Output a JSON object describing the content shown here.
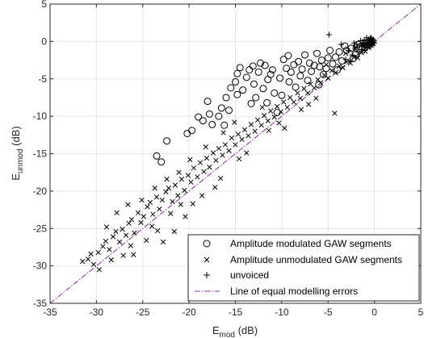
{
  "chart_data": {
    "type": "scatter",
    "xlabel": "E",
    "xlabel_sub": "mod",
    "xlabel_unit": " (dB)",
    "ylabel": "E",
    "ylabel_sub": "unmod",
    "ylabel_unit": " (dB)",
    "xlim": [
      -35,
      5
    ],
    "ylim": [
      -35,
      5
    ],
    "xticks": [
      -35,
      -30,
      -25,
      -20,
      -15,
      -10,
      -5,
      0,
      5
    ],
    "yticks": [
      -35,
      -30,
      -25,
      -20,
      -15,
      -10,
      -5,
      0,
      5
    ],
    "xtick_labels": [
      "-35",
      "-30",
      "-25",
      "-20",
      "-15",
      "-10",
      "-5",
      "0",
      "5"
    ],
    "ytick_labels": [
      "-35",
      "-30",
      "-25",
      "-20",
      "-15",
      "-10",
      "-5",
      "0",
      "5"
    ],
    "grid": true,
    "legend_position": "bottom-right",
    "series": [
      {
        "name": "Amplitude modulated GAW segments",
        "marker": "circle",
        "color": "#000000",
        "points": [
          [
            -23.5,
            -15.3
          ],
          [
            -22.4,
            -13.3
          ],
          [
            -23,
            -16.1
          ],
          [
            -20.2,
            -12.3
          ],
          [
            -19.7,
            -11.9
          ],
          [
            -19,
            -10.1
          ],
          [
            -18.5,
            -10.6
          ],
          [
            -18,
            -8
          ],
          [
            -17.8,
            -9.7
          ],
          [
            -17.5,
            -11.1
          ],
          [
            -16.8,
            -10
          ],
          [
            -16.5,
            -8.9
          ],
          [
            -16,
            -7.5
          ],
          [
            -15.5,
            -6.2
          ],
          [
            -15.7,
            -9.2
          ],
          [
            -15,
            -5.4
          ],
          [
            -14.8,
            -4.3
          ],
          [
            -14.5,
            -3.5
          ],
          [
            -14.8,
            -7.1
          ],
          [
            -14.2,
            -6.5
          ],
          [
            -13.8,
            -4.8
          ],
          [
            -13.5,
            -3.8
          ],
          [
            -13.3,
            -8.3
          ],
          [
            -13,
            -5.7
          ],
          [
            -12.8,
            -7.5
          ],
          [
            -12.5,
            -4.1
          ],
          [
            -12,
            -6.3
          ],
          [
            -11.8,
            -3.2
          ],
          [
            -11.5,
            -5.1
          ],
          [
            -11.2,
            -4.4
          ],
          [
            -11,
            -3.8
          ],
          [
            -10.8,
            -6.9
          ],
          [
            -10.5,
            -9.5
          ],
          [
            -10.2,
            -4.9
          ],
          [
            -10,
            -7.2
          ],
          [
            -9.8,
            -2.4
          ],
          [
            -9.5,
            -3.6
          ],
          [
            -9.2,
            -5.4
          ],
          [
            -9,
            -4.1
          ],
          [
            -8.7,
            -3.1
          ],
          [
            -8.5,
            -6.1
          ],
          [
            -8.2,
            -2.7
          ],
          [
            -8,
            -4.6
          ],
          [
            -7.8,
            -3.7
          ],
          [
            -7.5,
            -1.8
          ],
          [
            -7.2,
            -5.2
          ],
          [
            -7,
            -2.9
          ],
          [
            -6.8,
            -4
          ],
          [
            -6.5,
            -3.2
          ],
          [
            -6.2,
            -1.6
          ],
          [
            -6,
            -5.8
          ],
          [
            -5.7,
            -2.5
          ],
          [
            -5.5,
            -4.4
          ],
          [
            -5.2,
            -3.6
          ],
          [
            -5,
            -2.2
          ],
          [
            -4.8,
            -1.2
          ],
          [
            -4.5,
            -3
          ],
          [
            -4.2,
            -2.1
          ],
          [
            -3.8,
            -1.4
          ],
          [
            -3.5,
            -2.6
          ],
          [
            -3,
            -1.2
          ],
          [
            -2.5,
            -0.9
          ],
          [
            -2,
            -1.7
          ],
          [
            -1.5,
            -0.7
          ],
          [
            -1,
            -0.3
          ],
          [
            -0.6,
            -0.5
          ],
          [
            -0.3,
            -0.1
          ],
          [
            -1.8,
            -0.4
          ],
          [
            -2.3,
            -2.3
          ],
          [
            -3.2,
            -0.6
          ],
          [
            -4,
            -3.8
          ],
          [
            -12.3,
            -2.9
          ],
          [
            -13.1,
            -3.3
          ],
          [
            -9.3,
            -1.9
          ],
          [
            -5.9,
            -3.4
          ],
          [
            -16.2,
            -11.2
          ],
          [
            -11.6,
            -8.2
          ]
        ]
      },
      {
        "name": "Amplitude unmodulated GAW segments",
        "marker": "x",
        "color": "#000000",
        "points": [
          [
            -31.5,
            -29.4
          ],
          [
            -30.9,
            -29.1
          ],
          [
            -30.3,
            -29.8
          ],
          [
            -29.7,
            -30.5
          ],
          [
            -30.6,
            -28.4
          ],
          [
            -29.3,
            -27.4
          ],
          [
            -29,
            -26.7
          ],
          [
            -28.6,
            -27.8
          ],
          [
            -28.2,
            -26.1
          ],
          [
            -27.9,
            -25.4
          ],
          [
            -27.5,
            -26.8
          ],
          [
            -27.2,
            -25.1
          ],
          [
            -26.8,
            -25.9
          ],
          [
            -26.5,
            -24.3
          ],
          [
            -26.2,
            -23.8
          ],
          [
            -25.9,
            -25.6
          ],
          [
            -25.5,
            -22.9
          ],
          [
            -25.2,
            -24.2
          ],
          [
            -24.9,
            -23.4
          ],
          [
            -24.5,
            -22.1
          ],
          [
            -24.2,
            -21.5
          ],
          [
            -23.9,
            -23.1
          ],
          [
            -23.5,
            -20.8
          ],
          [
            -23.2,
            -22.4
          ],
          [
            -22.9,
            -21.2
          ],
          [
            -22.5,
            -20.1
          ],
          [
            -22.2,
            -19.6
          ],
          [
            -21.8,
            -21.4
          ],
          [
            -21.5,
            -19.2
          ],
          [
            -21.2,
            -20.6
          ],
          [
            -20.8,
            -18.4
          ],
          [
            -20.5,
            -19.9
          ],
          [
            -20.1,
            -17.9
          ],
          [
            -19.8,
            -18.8
          ],
          [
            -19.5,
            -16.9
          ],
          [
            -19.1,
            -18.1
          ],
          [
            -18.8,
            -16.2
          ],
          [
            -18.4,
            -17.4
          ],
          [
            -18.1,
            -15.6
          ],
          [
            -17.8,
            -16.8
          ],
          [
            -17.4,
            -14.9
          ],
          [
            -17.1,
            -15.9
          ],
          [
            -16.8,
            -14.3
          ],
          [
            -16.4,
            -15.2
          ],
          [
            -16.1,
            -13.8
          ],
          [
            -15.7,
            -14.6
          ],
          [
            -15.4,
            -12.9
          ],
          [
            -15,
            -13.8
          ],
          [
            -14.7,
            -12.4
          ],
          [
            -14.3,
            -13.1
          ],
          [
            -14,
            -11.8
          ],
          [
            -13.6,
            -12.6
          ],
          [
            -13.3,
            -11.1
          ],
          [
            -12.9,
            -12
          ],
          [
            -12.6,
            -10.5
          ],
          [
            -12.2,
            -11.2
          ],
          [
            -11.9,
            -9.9
          ],
          [
            -11.5,
            -10.6
          ],
          [
            -11.2,
            -9.3
          ],
          [
            -10.8,
            -10.1
          ],
          [
            -10.5,
            -8.7
          ],
          [
            -10.1,
            -9.4
          ],
          [
            -9.8,
            -8.1
          ],
          [
            -9.4,
            -8.8
          ],
          [
            -9.1,
            -7.5
          ],
          [
            -8.7,
            -8.1
          ],
          [
            -8.3,
            -6.9
          ],
          [
            -8,
            -7.6
          ],
          [
            -7.6,
            -6.3
          ],
          [
            -7.2,
            -6.9
          ],
          [
            -6.9,
            -5.7
          ],
          [
            -6.5,
            -6.2
          ],
          [
            -6.1,
            -5.1
          ],
          [
            -5.8,
            -5.5
          ],
          [
            -5.4,
            -4.5
          ],
          [
            -5,
            -4.9
          ],
          [
            -4.6,
            -3.9
          ],
          [
            -4.2,
            -4.2
          ],
          [
            -3.8,
            -3.3
          ],
          [
            -3.4,
            -3.5
          ],
          [
            -3,
            -2.7
          ],
          [
            -2.6,
            -2.9
          ],
          [
            -2.2,
            -2.1
          ],
          [
            -1.8,
            -2.2
          ],
          [
            -1.4,
            -1.5
          ],
          [
            -1,
            -1.3
          ],
          [
            -0.6,
            -0.8
          ],
          [
            -0.2,
            -0.3
          ],
          [
            -4.3,
            -9.6
          ],
          [
            -5.2,
            -3.1
          ],
          [
            -14.6,
            -15.7
          ],
          [
            -13.8,
            -14.9
          ],
          [
            -22.8,
            -26.8
          ],
          [
            -21.6,
            -25.4
          ],
          [
            -26,
            -28.5
          ],
          [
            -28.9,
            -24.8
          ],
          [
            -24.6,
            -26.6
          ],
          [
            -23.4,
            -25.3
          ],
          [
            -20.4,
            -23.4
          ],
          [
            -19.6,
            -21.7
          ],
          [
            -18.6,
            -20.6
          ],
          [
            -17.2,
            -19.5
          ],
          [
            -16.6,
            -18.3
          ],
          [
            -25.1,
            -21.2
          ],
          [
            -23.7,
            -19.6
          ],
          [
            -22.4,
            -18.4
          ],
          [
            -21.1,
            -17.5
          ],
          [
            -27.8,
            -22.9
          ],
          [
            -26.6,
            -21.8
          ],
          [
            -28.4,
            -29.2
          ],
          [
            -27.1,
            -28.6
          ],
          [
            -19.9,
            -15.8
          ],
          [
            -18.2,
            -14.1
          ],
          [
            -16.3,
            -12.2
          ],
          [
            -15.1,
            -10.8
          ],
          [
            -12.1,
            -8.8
          ],
          [
            -11.4,
            -11.9
          ],
          [
            -10.3,
            -10.9
          ],
          [
            -9.7,
            -11.6
          ],
          [
            -7.9,
            -9.1
          ],
          [
            -7.1,
            -8.4
          ],
          [
            -6.3,
            -7.6
          ],
          [
            -3.1,
            -1.6
          ],
          [
            -2.1,
            -0.9
          ],
          [
            -1.2,
            -0.4
          ],
          [
            -29.8,
            -28.2
          ],
          [
            -24,
            -24.7
          ],
          [
            -22,
            -23
          ],
          [
            -20.9,
            -21.8
          ],
          [
            -26.3,
            -27.3
          ]
        ]
      },
      {
        "name": "unvoiced",
        "marker": "plus",
        "color": "#000000",
        "points": [
          [
            -2.8,
            -1.2
          ],
          [
            -2.4,
            -1.8
          ],
          [
            -2.1,
            -0.9
          ],
          [
            -1.8,
            -1.4
          ],
          [
            -1.6,
            -0.6
          ],
          [
            -1.4,
            -1.1
          ],
          [
            -1.2,
            -0.3
          ],
          [
            -1,
            -0.8
          ],
          [
            -0.9,
            -0.2
          ],
          [
            -0.8,
            -0.5
          ],
          [
            -0.7,
            0.1
          ],
          [
            -0.6,
            -0.3
          ],
          [
            -0.5,
            -0.7
          ],
          [
            -0.4,
            0.2
          ],
          [
            -0.35,
            -0.1
          ],
          [
            -0.3,
            -0.4
          ],
          [
            -0.25,
            0
          ],
          [
            -0.2,
            -0.2
          ],
          [
            -0.15,
            0.3
          ],
          [
            -0.1,
            -0.1
          ],
          [
            -0.05,
            0.1
          ],
          [
            0,
            -0.2
          ],
          [
            -0.45,
            0.4
          ],
          [
            -0.55,
            -0.1
          ],
          [
            -0.65,
            0.3
          ],
          [
            -1.1,
            0.2
          ],
          [
            -1.3,
            -0.5
          ],
          [
            -1.5,
            0.1
          ],
          [
            -1.9,
            -0.4
          ],
          [
            -2.2,
            -0.2
          ],
          [
            -0.75,
            -0.9
          ],
          [
            -0.85,
            0.5
          ],
          [
            -0.95,
            -0.4
          ],
          [
            -1.05,
            -1.2
          ],
          [
            -3.1,
            -2.4
          ],
          [
            -2.6,
            -2.6
          ],
          [
            -0.15,
            -0.5
          ],
          [
            -0.35,
            0.5
          ],
          [
            -4.9,
            0.9
          ],
          [
            -3.6,
            -0.4
          ]
        ]
      }
    ],
    "reference_line": {
      "name": "Line of equal modelling errors",
      "style": "dash-dot",
      "color": "#7e2f8e",
      "from": [
        -35,
        -35
      ],
      "to": [
        5,
        5
      ]
    }
  }
}
